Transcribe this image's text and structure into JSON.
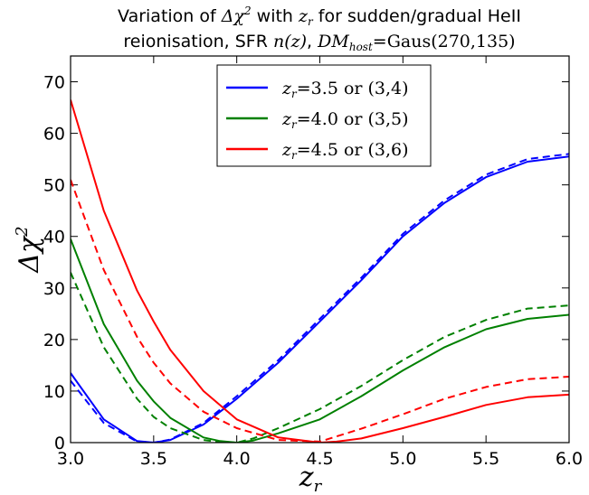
{
  "chart_data": {
    "type": "line",
    "title_line1": "Variation of Δχ² with z_r for sudden/gradual HeII",
    "title_line2": "reionisation, SFR n(z), DM_host =Gaus(270,135)",
    "title_parts": {
      "a": "Variation of ",
      "chi": "Δχ",
      "sup2": "2",
      "b": " with ",
      "z": "z",
      "r": "r",
      "c": " for sudden/gradual HeII",
      "d": "reionisation, SFR ",
      "nz": "n(z)",
      "e": ", ",
      "dm": "DM",
      "host": "host",
      "f": "=Gaus(270,135)"
    },
    "xlabel": "z_r",
    "xlabel_z": "z",
    "xlabel_r": "r",
    "ylabel": "Δχ²",
    "ylabel_delta": "Δχ",
    "ylabel_sup": "2",
    "xlim": [
      3.0,
      6.0
    ],
    "ylim": [
      0,
      75
    ],
    "xticks": [
      "3.0",
      "3.5",
      "4.0",
      "4.5",
      "5.0",
      "5.5",
      "6.0"
    ],
    "yticks": [
      "0",
      "10",
      "20",
      "30",
      "40",
      "50",
      "60",
      "70"
    ],
    "legend_position": "top-center",
    "grid": false,
    "series": [
      {
        "name": "z_r=3.5 or (3,4)",
        "legend_z": "z",
        "legend_r": "r",
        "legend_rest": "=3.5 or (3,4)",
        "color": "#0000ff",
        "solid": {
          "x": [
            3.0,
            3.2,
            3.4,
            3.5,
            3.6,
            3.8,
            4.0,
            4.25,
            4.5,
            4.75,
            5.0,
            5.25,
            5.5,
            5.75,
            6.0
          ],
          "y": [
            13.5,
            4.5,
            0.3,
            0.0,
            0.5,
            3.5,
            8.5,
            15.5,
            23.5,
            31.5,
            40.0,
            46.5,
            51.5,
            54.5,
            55.5
          ]
        },
        "dashed": {
          "x": [
            3.0,
            3.2,
            3.4,
            3.5,
            3.6,
            3.8,
            4.0,
            4.25,
            4.5,
            4.75,
            5.0,
            5.25,
            5.5,
            5.75,
            6.0
          ],
          "y": [
            12.0,
            3.8,
            0.2,
            0.0,
            0.6,
            3.8,
            9.0,
            16.0,
            24.0,
            32.0,
            40.5,
            47.0,
            52.0,
            55.0,
            56.0
          ]
        }
      },
      {
        "name": "z_r=4.0 or (3,5)",
        "legend_z": "z",
        "legend_r": "r",
        "legend_rest": "=4.0 or (3,5)",
        "color": "#008000",
        "solid": {
          "x": [
            3.0,
            3.2,
            3.4,
            3.5,
            3.6,
            3.8,
            3.9,
            4.0,
            4.1,
            4.25,
            4.5,
            4.75,
            5.0,
            5.25,
            5.5,
            5.75,
            6.0
          ],
          "y": [
            39.5,
            23.0,
            12.0,
            8.0,
            4.8,
            1.0,
            0.3,
            0.0,
            0.4,
            1.8,
            4.5,
            9.0,
            14.0,
            18.5,
            22.0,
            24.0,
            24.8
          ]
        },
        "dashed": {
          "x": [
            3.0,
            3.2,
            3.4,
            3.5,
            3.6,
            3.8,
            3.9,
            4.0,
            4.1,
            4.25,
            4.5,
            4.75,
            5.0,
            5.25,
            5.5,
            5.75,
            6.0
          ],
          "y": [
            33.0,
            18.5,
            8.5,
            5.0,
            2.8,
            0.5,
            0.1,
            0.0,
            0.8,
            2.8,
            6.5,
            11.0,
            16.0,
            20.5,
            23.8,
            26.0,
            26.6
          ]
        }
      },
      {
        "name": "z_r=4.5 or (3,6)",
        "legend_z": "z",
        "legend_r": "r",
        "legend_rest": "=4.5 or (3,6)",
        "color": "#ff0000",
        "solid": {
          "x": [
            3.0,
            3.2,
            3.4,
            3.5,
            3.6,
            3.8,
            4.0,
            4.25,
            4.5,
            4.6,
            4.75,
            5.0,
            5.25,
            5.5,
            5.75,
            6.0
          ],
          "y": [
            66.5,
            45.0,
            29.5,
            23.5,
            18.0,
            10.0,
            4.5,
            1.0,
            0.0,
            0.2,
            0.8,
            2.8,
            5.0,
            7.3,
            8.8,
            9.3
          ]
        },
        "dashed": {
          "x": [
            3.0,
            3.2,
            3.4,
            3.5,
            3.6,
            3.8,
            4.0,
            4.25,
            4.5,
            4.75,
            5.0,
            5.25,
            5.5,
            5.75,
            6.0
          ],
          "y": [
            51.0,
            33.5,
            20.5,
            15.5,
            11.5,
            6.0,
            2.8,
            0.5,
            0.2,
            2.7,
            5.5,
            8.5,
            10.8,
            12.3,
            12.8
          ]
        }
      }
    ]
  }
}
